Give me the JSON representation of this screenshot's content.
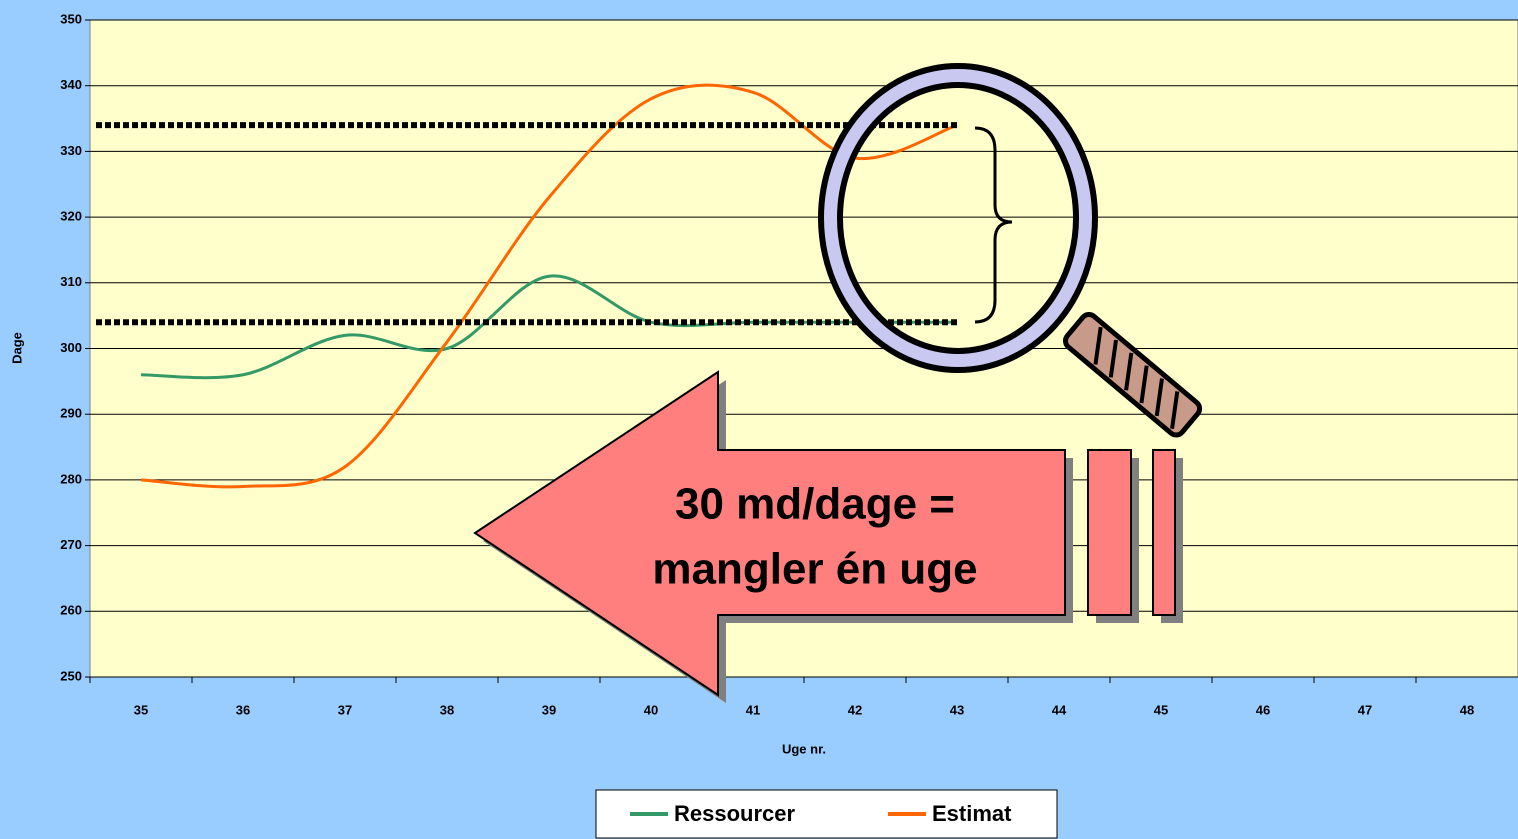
{
  "chart_data": {
    "type": "line",
    "x_label": "Uge nr.",
    "y_label": "Dage",
    "categories": [
      "35",
      "36",
      "37",
      "38",
      "39",
      "40",
      "41",
      "42",
      "43",
      "44",
      "45",
      "46",
      "47",
      "48"
    ],
    "series": [
      {
        "name": "Ressourcer",
        "color": "#339966",
        "values": [
          296,
          296,
          302,
          300,
          311,
          304,
          304,
          304,
          304,
          null,
          null,
          null,
          null,
          null
        ]
      },
      {
        "name": "Estimat",
        "color": "#ff6600",
        "values": [
          280,
          279,
          282,
          301,
          323,
          338,
          339,
          329,
          334,
          null,
          null,
          null,
          null,
          null
        ]
      }
    ],
    "reference_lines": [
      334,
      304
    ],
    "annotation": [
      "30 md/dage =",
      "mangler én uge"
    ],
    "ylim": [
      250,
      350
    ],
    "yticks": [
      250,
      260,
      270,
      280,
      290,
      300,
      310,
      320,
      330,
      340,
      350
    ],
    "grid": true,
    "legend": "bottom"
  }
}
